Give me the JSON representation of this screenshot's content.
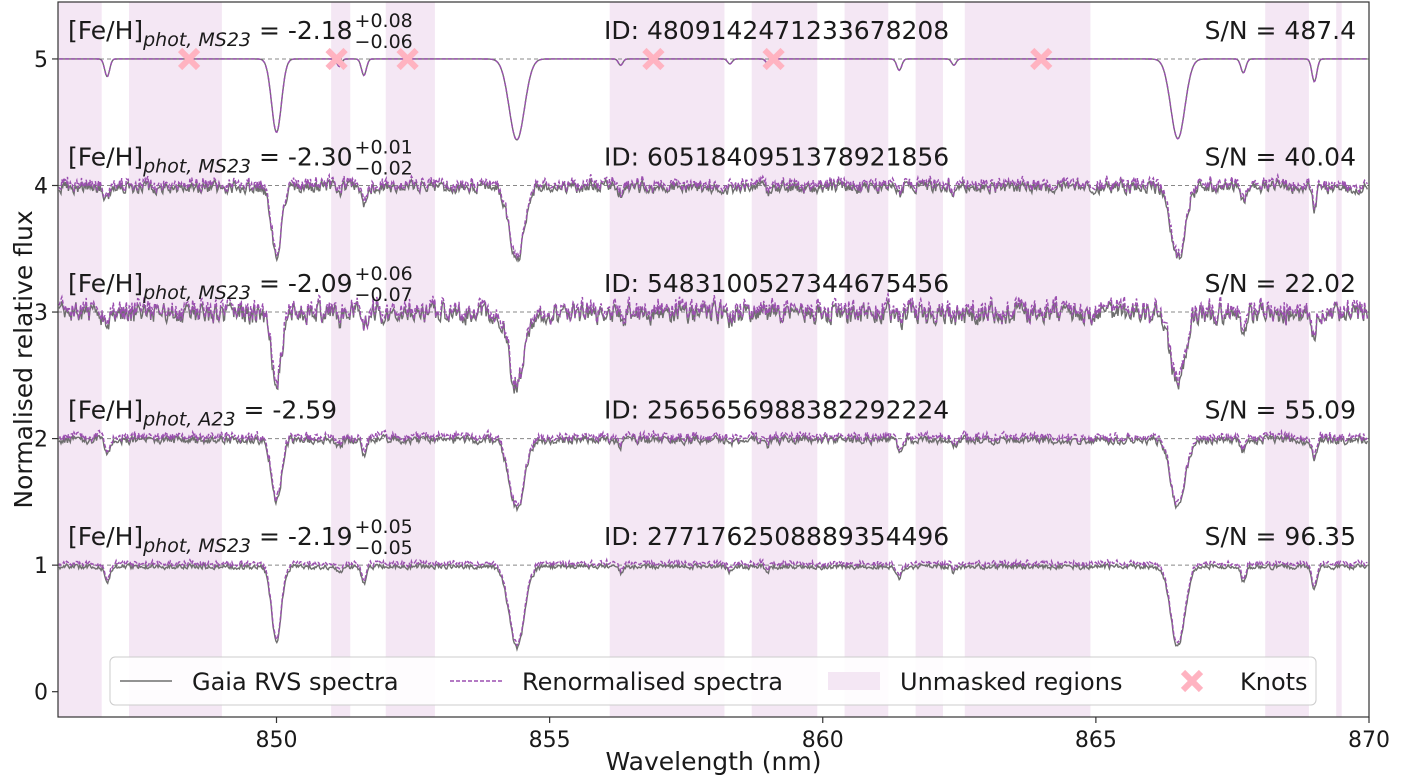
{
  "chart_data": {
    "type": "line",
    "xlabel": "Wavelength (nm)",
    "ylabel": "Normalised relative flux",
    "xlim": [
      846,
      870
    ],
    "ylim": [
      -0.2,
      5.45
    ],
    "xticks": [
      850,
      855,
      860,
      865,
      870
    ],
    "yticks": [
      0,
      1,
      2,
      3,
      4,
      5
    ],
    "grid": false,
    "legend_position": "bottom-center",
    "legend": [
      {
        "label": "Gaia RVS spectra",
        "style": "solid",
        "color": "#666666"
      },
      {
        "label": "Renormalised spectra",
        "style": "dashed",
        "color": "#9b59b6"
      },
      {
        "label": "Unmasked regions",
        "style": "patch",
        "color": "#f3e6f3"
      },
      {
        "label": "Knots",
        "style": "marker-x",
        "color": "#ffb6c1"
      }
    ],
    "unmasked_regions": [
      [
        846.0,
        846.8
      ],
      [
        847.3,
        849.0
      ],
      [
        851.0,
        851.35
      ],
      [
        852.0,
        852.9
      ],
      [
        856.1,
        858.2
      ],
      [
        858.7,
        859.9
      ],
      [
        860.4,
        861.2
      ],
      [
        861.7,
        862.2
      ],
      [
        862.6,
        864.9
      ],
      [
        868.1,
        868.9
      ],
      [
        869.4,
        869.5
      ]
    ],
    "absorption_lines": [
      {
        "center": 846.9,
        "depth": 0.14,
        "width": 0.045
      },
      {
        "center": 850.0,
        "depth": 0.58,
        "width": 0.09
      },
      {
        "center": 851.15,
        "depth": 0.06,
        "width": 0.04
      },
      {
        "center": 851.6,
        "depth": 0.13,
        "width": 0.045
      },
      {
        "center": 854.4,
        "depth": 0.64,
        "width": 0.14
      },
      {
        "center": 856.3,
        "depth": 0.05,
        "width": 0.04
      },
      {
        "center": 858.3,
        "depth": 0.04,
        "width": 0.04
      },
      {
        "center": 859.0,
        "depth": 0.04,
        "width": 0.04
      },
      {
        "center": 861.4,
        "depth": 0.09,
        "width": 0.045
      },
      {
        "center": 862.4,
        "depth": 0.05,
        "width": 0.04
      },
      {
        "center": 866.5,
        "depth": 0.63,
        "width": 0.13
      },
      {
        "center": 867.7,
        "depth": 0.11,
        "width": 0.045
      },
      {
        "center": 869.0,
        "depth": 0.18,
        "width": 0.045
      }
    ],
    "series": [
      {
        "offset": 5,
        "feh_base": "[Fe/H]",
        "feh_sub": "phot, MS23",
        "feh_value": " = -2.18",
        "feh_sup": "+0.08",
        "feh_inf": "−0.06",
        "id": "ID: 4809142471233678208",
        "sn": "S/N = 487.4",
        "noise": 0.0,
        "line_scale": 1.0,
        "knots": [
          {
            "x": 848.4,
            "y": 5.0
          },
          {
            "x": 851.1,
            "y": 5.0
          },
          {
            "x": 852.4,
            "y": 5.0
          },
          {
            "x": 856.9,
            "y": 5.0
          },
          {
            "x": 859.1,
            "y": 5.0
          },
          {
            "x": 864.0,
            "y": 5.0
          }
        ]
      },
      {
        "offset": 4,
        "feh_base": "[Fe/H]",
        "feh_sub": "phot, MS23",
        "feh_value": " = -2.30",
        "feh_sup": "+0.01",
        "feh_inf": "−0.02",
        "id": "ID: 6051840951378921856",
        "sn": "S/N = 40.04",
        "noise": 0.045,
        "line_scale": 0.9,
        "knots": []
      },
      {
        "offset": 3,
        "feh_base": "[Fe/H]",
        "feh_sub": "phot, MS23",
        "feh_value": " = -2.09",
        "feh_sup": "+0.06",
        "feh_inf": "−0.07",
        "id": "ID: 5483100527344675456",
        "sn": "S/N = 22.02",
        "noise": 0.075,
        "line_scale": 0.9,
        "knots": []
      },
      {
        "offset": 2,
        "feh_base": "[Fe/H]",
        "feh_sub": "phot, A23",
        "feh_value": " = -2.59",
        "feh_sup": "",
        "feh_inf": "",
        "id": "ID: 2565656988382292224",
        "sn": "S/N = 55.09",
        "noise": 0.03,
        "line_scale": 0.85,
        "knots": []
      },
      {
        "offset": 1,
        "feh_base": "[Fe/H]",
        "feh_sub": "phot, MS23",
        "feh_value": " = -2.19",
        "feh_sup": "+0.05",
        "feh_inf": "−0.05",
        "id": "ID: 2771762508889354496",
        "sn": "S/N = 96.35",
        "noise": 0.018,
        "line_scale": 1.0,
        "knots": []
      }
    ]
  },
  "colors": {
    "gaia": "#6e6e6e",
    "renorm": "#9b4fb0",
    "region": "#f4e7f4",
    "knot": "#ffb3c1",
    "reference": "#888888"
  }
}
